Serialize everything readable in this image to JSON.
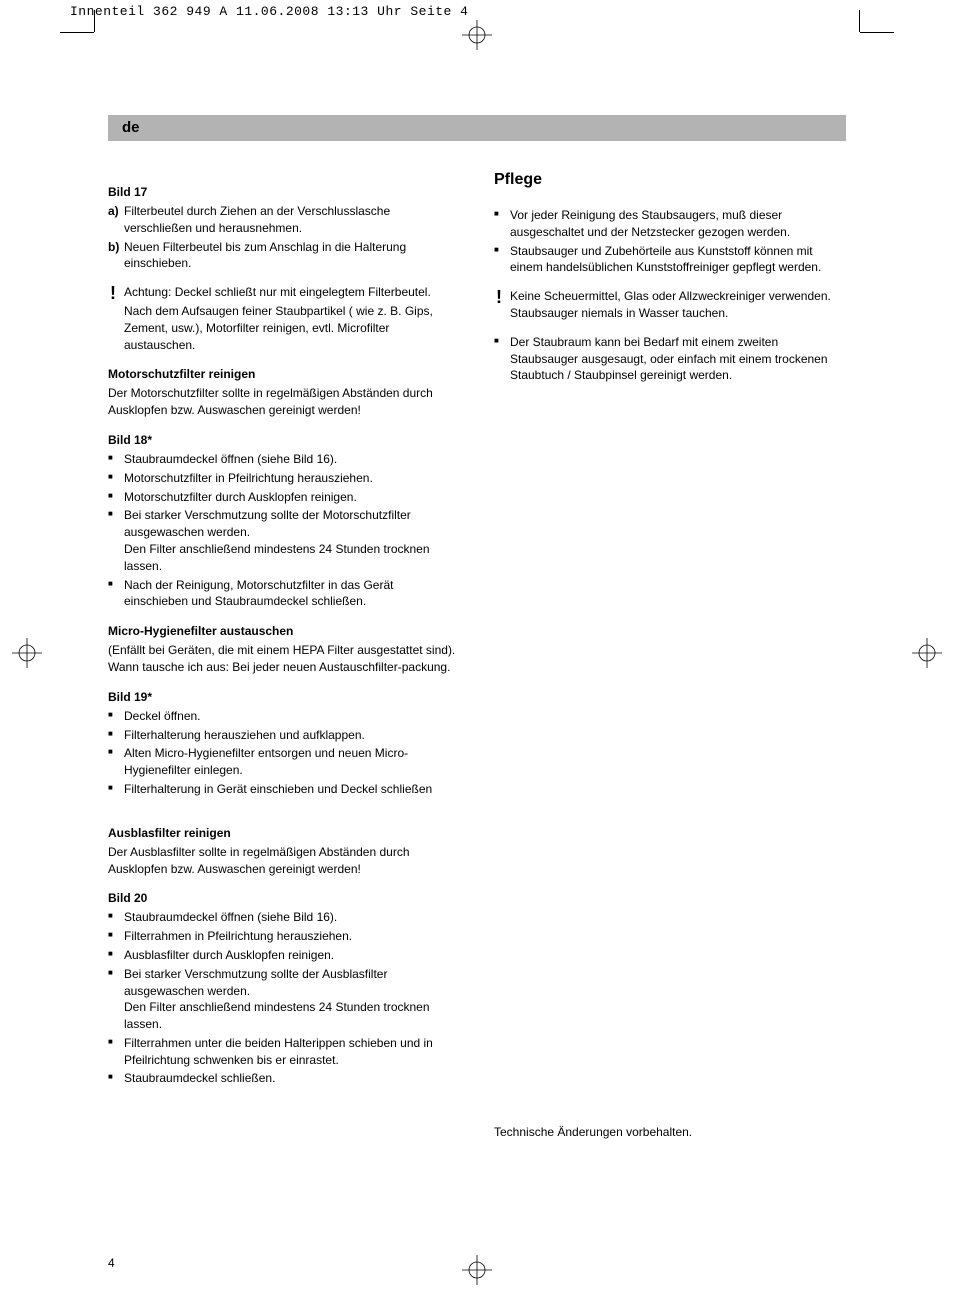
{
  "header": "Innenteil 362 949 A  11.06.2008  13:13 Uhr  Seite 4",
  "lang": "de",
  "pageNumber": "4",
  "left": {
    "bild17": {
      "title": "Bild 17",
      "a": "Filterbeutel durch Ziehen an der Verschlusslasche verschließen und herausnehmen.",
      "b": "Neuen Filterbeutel bis zum Anschlag in die Halterung einschieben.",
      "warn": "Achtung: Deckel schließt nur mit eingelegtem Filterbeutel.",
      "after": "Nach dem Aufsaugen feiner Staubpartikel ( wie z. B. Gips, Zement, usw.), Motorfilter reinigen, evtl. Microfilter austauschen."
    },
    "motor": {
      "title": "Motorschutzfilter reinigen",
      "text": "Der Motorschutzfilter sollte in regelmäßigen Abständen durch Ausklopfen bzw. Auswaschen gereinigt werden!"
    },
    "bild18": {
      "title": "Bild 18*",
      "items": [
        "Staubraumdeckel öffnen (siehe Bild 16).",
        "Motorschutzfilter in Pfeilrichtung herausziehen.",
        "Motorschutzfilter durch Ausklopfen reinigen.",
        "Bei starker Verschmutzung sollte der Motorschutzfilter ausgewaschen werden.\nDen Filter anschließend mindestens 24 Stunden trocknen lassen.",
        "Nach der Reinigung, Motorschutzfilter in das Gerät einschieben und Staubraumdeckel schließen."
      ]
    },
    "micro": {
      "title": "Micro-Hygienefilter austauschen",
      "text": "(Enfällt bei Geräten, die mit einem HEPA Filter ausgestattet sind).\nWann tausche ich aus: Bei jeder neuen Austauschfilter-packung."
    },
    "bild19": {
      "title": "Bild 19*",
      "items": [
        "Deckel öffnen.",
        "Filterhalterung herausziehen und aufklappen.",
        "Alten Micro-Hygienefilter entsorgen und neuen Micro-Hygienefilter einlegen.",
        "Filterhalterung in Gerät einschieben und Deckel schließen"
      ]
    },
    "ausblas": {
      "title": "Ausblasfilter reinigen",
      "text": "Der Ausblasfilter sollte in regelmäßigen Abständen durch Ausklopfen bzw. Auswaschen gereinigt werden!"
    },
    "bild20": {
      "title": "Bild 20",
      "items": [
        "Staubraumdeckel öffnen (siehe Bild 16).",
        "Filterrahmen in Pfeilrichtung herausziehen.",
        "Ausblasfilter durch Ausklopfen reinigen.",
        "Bei starker Verschmutzung sollte der Ausblasfilter ausgewaschen werden.\nDen Filter anschließend mindestens 24 Stunden trocknen lassen.",
        "Filterrahmen unter die beiden Halterippen schieben und in Pfeilrichtung schwenken bis er einrastet.",
        "Staubraumdeckel schließen."
      ]
    }
  },
  "right": {
    "pflege": {
      "title": "Pflege",
      "items1": [
        "Vor jeder Reinigung des Staubsaugers, muß dieser ausgeschaltet und der Netzstecker gezogen werden.",
        "Staubsauger und Zubehörteile aus Kunststoff können mit einem handelsüblichen Kunststoffreiniger gepflegt werden."
      ],
      "warn": "Keine Scheuermittel, Glas oder Allzweckreiniger verwenden. Staubsauger niemals in Wasser tauchen.",
      "items2": [
        "Der Staubraum kann bei Bedarf mit einem zweiten Staubsauger ausgesaugt, oder einfach mit einem trockenen Staubtuch / Staubpinsel gereinigt werden."
      ]
    },
    "tech": "Technische Änderungen vorbehalten."
  }
}
